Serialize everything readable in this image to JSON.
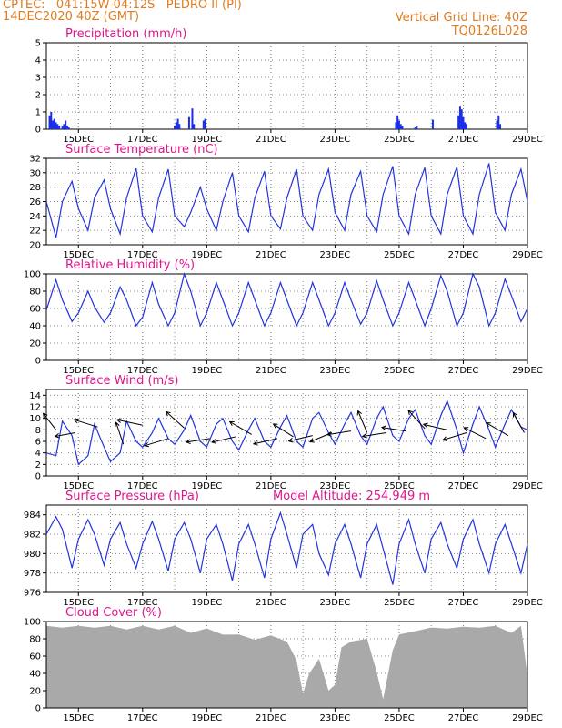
{
  "header": {
    "line1_left": "CPTEC:   041:15W-04:12S   PEDRO II (PI)",
    "line2_left": "14DEC2020 40Z (GMT)",
    "line1_right": "Vertical Grid Line: 40Z",
    "line2_right": "TQ0126L028"
  },
  "colors": {
    "header": "#e07b1f",
    "title": "#e0148c",
    "line": "#2233dd",
    "bar": "#1a2ee8",
    "cloud": "#a9a9a9"
  },
  "chart_data": [
    {
      "id": "precip",
      "type": "bar",
      "title": "Precipitation (mm/h)",
      "x_ticks": [
        "15DEC",
        "17DEC",
        "19DEC",
        "21DEC",
        "23DEC",
        "25DEC",
        "27DEC",
        "29DEC"
      ],
      "x_range_days": [
        14.0,
        29.0
      ],
      "ylim": [
        0,
        5
      ],
      "y_ticks": [
        "0",
        "1",
        "2",
        "3",
        "4",
        "5"
      ],
      "x": [
        14.1,
        14.15,
        14.2,
        14.25,
        14.3,
        14.35,
        14.4,
        14.5,
        14.55,
        14.6,
        14.65,
        14.7,
        18.0,
        18.05,
        18.1,
        18.15,
        18.45,
        18.55,
        18.6,
        18.9,
        18.95,
        24.9,
        24.95,
        25.0,
        25.05,
        25.1,
        25.5,
        25.55,
        26.05,
        26.85,
        26.9,
        26.95,
        27.0,
        27.05,
        27.1,
        28.05,
        28.1,
        28.15
      ],
      "values": [
        0.8,
        1.0,
        0.5,
        0.6,
        0.4,
        0.3,
        0.2,
        0.15,
        0.3,
        0.5,
        0.2,
        0.1,
        0.2,
        0.4,
        0.6,
        0.3,
        0.7,
        1.2,
        0.3,
        0.5,
        0.6,
        0.4,
        0.8,
        0.5,
        0.3,
        0.2,
        0.1,
        0.15,
        0.55,
        0.8,
        1.3,
        1.15,
        0.7,
        0.4,
        0.3,
        0.5,
        0.8,
        0.3
      ]
    },
    {
      "id": "temp",
      "type": "line",
      "title": "Surface Temperature (nC)",
      "x_ticks": [
        "15DEC",
        "17DEC",
        "19DEC",
        "21DEC",
        "23DEC",
        "25DEC",
        "27DEC",
        "29DEC"
      ],
      "x_range_days": [
        14.0,
        29.0
      ],
      "ylim": [
        20,
        32
      ],
      "y_ticks": [
        "20",
        "22",
        "24",
        "26",
        "28",
        "30",
        "32"
      ],
      "x": [
        14.0,
        14.3,
        14.5,
        14.8,
        15.0,
        15.3,
        15.5,
        15.8,
        16.0,
        16.3,
        16.5,
        16.8,
        17.0,
        17.3,
        17.5,
        17.8,
        18.0,
        18.3,
        18.5,
        18.8,
        19.0,
        19.3,
        19.5,
        19.8,
        20.0,
        20.3,
        20.5,
        20.8,
        21.0,
        21.3,
        21.5,
        21.8,
        22.0,
        22.3,
        22.5,
        22.8,
        23.0,
        23.3,
        23.5,
        23.8,
        24.0,
        24.3,
        24.5,
        24.8,
        25.0,
        25.3,
        25.5,
        25.8,
        26.0,
        26.3,
        26.5,
        26.8,
        27.0,
        27.3,
        27.5,
        27.8,
        28.0,
        28.3,
        28.5,
        28.8,
        29.0
      ],
      "values": [
        26.0,
        21.0,
        26.0,
        28.8,
        25.0,
        22.0,
        26.5,
        29.0,
        25.0,
        21.5,
        26.5,
        30.6,
        24.0,
        21.8,
        26.5,
        30.5,
        24.0,
        22.5,
        24.5,
        28.0,
        25.0,
        22.0,
        26.0,
        30.0,
        24.0,
        21.8,
        26.5,
        30.2,
        24.0,
        22.2,
        26.5,
        30.5,
        24.0,
        22.0,
        27.0,
        30.5,
        24.5,
        22.0,
        27.0,
        30.2,
        24.0,
        21.8,
        27.0,
        30.9,
        24.0,
        21.5,
        27.0,
        30.7,
        24.0,
        21.5,
        27.0,
        30.8,
        24.0,
        21.5,
        27.0,
        31.3,
        24.5,
        22.0,
        27.0,
        30.5,
        26.0
      ]
    },
    {
      "id": "rh",
      "type": "line",
      "title": "Relative Humidity (%)",
      "x_ticks": [
        "15DEC",
        "17DEC",
        "19DEC",
        "21DEC",
        "23DEC",
        "25DEC",
        "27DEC",
        "29DEC"
      ],
      "x_range_days": [
        14.0,
        29.0
      ],
      "ylim": [
        0,
        100
      ],
      "y_ticks": [
        "0",
        "20",
        "40",
        "60",
        "80",
        "100"
      ],
      "x": [
        14.0,
        14.3,
        14.5,
        14.8,
        15.0,
        15.3,
        15.5,
        15.8,
        16.0,
        16.3,
        16.5,
        16.8,
        17.0,
        17.3,
        17.5,
        17.8,
        18.0,
        18.3,
        18.5,
        18.8,
        19.0,
        19.3,
        19.5,
        19.8,
        20.0,
        20.3,
        20.5,
        20.8,
        21.0,
        21.3,
        21.5,
        21.8,
        22.0,
        22.3,
        22.5,
        22.8,
        23.0,
        23.3,
        23.5,
        23.8,
        24.0,
        24.3,
        24.5,
        24.8,
        25.0,
        25.3,
        25.5,
        25.8,
        26.0,
        26.3,
        26.5,
        26.8,
        27.0,
        27.3,
        27.5,
        27.8,
        28.0,
        28.3,
        28.5,
        28.8,
        29.0
      ],
      "values": [
        58,
        93,
        70,
        45,
        55,
        80,
        62,
        44,
        55,
        85,
        70,
        40,
        50,
        90,
        65,
        40,
        55,
        100,
        80,
        40,
        55,
        90,
        70,
        40,
        55,
        90,
        70,
        40,
        55,
        90,
        70,
        40,
        55,
        90,
        70,
        40,
        55,
        90,
        70,
        42,
        55,
        92,
        70,
        40,
        55,
        90,
        70,
        40,
        60,
        98,
        80,
        40,
        55,
        100,
        85,
        40,
        55,
        94,
        75,
        45,
        60
      ]
    },
    {
      "id": "wind",
      "type": "line",
      "title": "Surface Wind (m/s)",
      "x_ticks": [
        "15DEC",
        "17DEC",
        "19DEC",
        "21DEC",
        "23DEC",
        "25DEC",
        "27DEC",
        "29DEC"
      ],
      "x_range_days": [
        14.0,
        29.0
      ],
      "ylim": [
        0,
        15
      ],
      "y_ticks": [
        "0",
        "2",
        "4",
        "6",
        "8",
        "10",
        "12",
        "14"
      ],
      "x": [
        14.0,
        14.3,
        14.5,
        14.8,
        15.0,
        15.3,
        15.5,
        15.8,
        16.0,
        16.3,
        16.5,
        16.8,
        17.0,
        17.3,
        17.5,
        17.8,
        18.0,
        18.3,
        18.5,
        18.8,
        19.0,
        19.3,
        19.5,
        19.8,
        20.0,
        20.3,
        20.5,
        20.8,
        21.0,
        21.3,
        21.5,
        21.8,
        22.0,
        22.3,
        22.5,
        22.8,
        23.0,
        23.3,
        23.5,
        23.8,
        24.0,
        24.3,
        24.5,
        24.8,
        25.0,
        25.3,
        25.5,
        25.8,
        26.0,
        26.3,
        26.5,
        26.8,
        27.0,
        27.3,
        27.5,
        27.8,
        28.0,
        28.3,
        28.5,
        28.8,
        29.0
      ],
      "values": [
        4.0,
        3.5,
        9.5,
        7.0,
        2.0,
        3.5,
        9.0,
        5.0,
        2.5,
        4.0,
        9.5,
        6.0,
        5.0,
        7.5,
        10.0,
        6.5,
        5.5,
        8.0,
        10.5,
        6.0,
        5.0,
        9.0,
        10.0,
        6.0,
        4.5,
        8.0,
        10.0,
        6.0,
        5.0,
        8.5,
        10.5,
        6.0,
        5.0,
        10.0,
        11.0,
        7.5,
        5.5,
        9.0,
        11.0,
        7.0,
        5.5,
        10.0,
        12.0,
        7.0,
        6.0,
        10.0,
        11.5,
        7.0,
        5.5,
        10.5,
        13.0,
        8.0,
        4.0,
        9.0,
        12.0,
        8.0,
        5.0,
        9.0,
        11.5,
        8.5,
        8.0
      ],
      "vectors": [
        {
          "x": 14.3,
          "y": 8.0,
          "dx": -14,
          "dy": -18
        },
        {
          "x": 14.9,
          "y": 7.5,
          "dx": -22,
          "dy": 4
        },
        {
          "x": 15.6,
          "y": 8.5,
          "dx": -26,
          "dy": -8
        },
        {
          "x": 16.4,
          "y": 5.5,
          "dx": -8,
          "dy": -24
        },
        {
          "x": 17.0,
          "y": 8.8,
          "dx": -28,
          "dy": -6
        },
        {
          "x": 17.8,
          "y": 6.5,
          "dx": -26,
          "dy": 8
        },
        {
          "x": 18.3,
          "y": 8.3,
          "dx": -20,
          "dy": -18
        },
        {
          "x": 19.1,
          "y": 6.5,
          "dx": -26,
          "dy": 4
        },
        {
          "x": 19.9,
          "y": 6.8,
          "dx": -26,
          "dy": 6
        },
        {
          "x": 20.4,
          "y": 7.2,
          "dx": -24,
          "dy": -14
        },
        {
          "x": 21.2,
          "y": 6.5,
          "dx": -26,
          "dy": 6
        },
        {
          "x": 21.7,
          "y": 6.8,
          "dx": -22,
          "dy": -14
        },
        {
          "x": 22.3,
          "y": 7.0,
          "dx": -26,
          "dy": 6
        },
        {
          "x": 22.9,
          "y": 7.5,
          "dx": -24,
          "dy": 10
        },
        {
          "x": 23.5,
          "y": 7.8,
          "dx": -26,
          "dy": 4
        },
        {
          "x": 24.0,
          "y": 7.5,
          "dx": -10,
          "dy": -24
        },
        {
          "x": 24.6,
          "y": 7.5,
          "dx": -26,
          "dy": 4
        },
        {
          "x": 25.2,
          "y": 7.8,
          "dx": -26,
          "dy": -4
        },
        {
          "x": 25.8,
          "y": 8.2,
          "dx": -18,
          "dy": -20
        },
        {
          "x": 26.5,
          "y": 8.0,
          "dx": -26,
          "dy": -6
        },
        {
          "x": 27.1,
          "y": 7.5,
          "dx": -26,
          "dy": 8
        },
        {
          "x": 27.7,
          "y": 6.5,
          "dx": -24,
          "dy": -12
        },
        {
          "x": 28.4,
          "y": 7.0,
          "dx": -24,
          "dy": -14
        },
        {
          "x": 28.9,
          "y": 7.5,
          "dx": -12,
          "dy": -22
        }
      ]
    },
    {
      "id": "press",
      "type": "line",
      "title": "Surface Pressure (hPa)",
      "annotation": "Model Altitude: 254.949 m",
      "x_ticks": [
        "15DEC",
        "17DEC",
        "19DEC",
        "21DEC",
        "23DEC",
        "25DEC",
        "27DEC",
        "29DEC"
      ],
      "x_range_days": [
        14.0,
        29.0
      ],
      "ylim": [
        976,
        985
      ],
      "y_ticks": [
        "976",
        "978",
        "980",
        "982",
        "984"
      ],
      "x": [
        14.0,
        14.3,
        14.5,
        14.8,
        15.0,
        15.3,
        15.5,
        15.8,
        16.0,
        16.3,
        16.5,
        16.8,
        17.0,
        17.3,
        17.5,
        17.8,
        18.0,
        18.3,
        18.5,
        18.8,
        19.0,
        19.3,
        19.5,
        19.8,
        20.0,
        20.3,
        20.5,
        20.8,
        21.0,
        21.3,
        21.5,
        21.8,
        22.0,
        22.3,
        22.5,
        22.8,
        23.0,
        23.3,
        23.5,
        23.8,
        24.0,
        24.3,
        24.5,
        24.8,
        25.0,
        25.3,
        25.5,
        25.8,
        26.0,
        26.3,
        26.5,
        26.8,
        27.0,
        27.3,
        27.5,
        27.8,
        28.0,
        28.3,
        28.5,
        28.8,
        29.0
      ],
      "values": [
        982.0,
        983.8,
        982.5,
        978.5,
        981.5,
        983.5,
        982.0,
        978.8,
        981.5,
        983.2,
        981.0,
        978.5,
        981.0,
        983.3,
        981.5,
        978.2,
        981.5,
        983.2,
        981.5,
        978.0,
        981.5,
        983.0,
        981.0,
        977.2,
        981.0,
        983.0,
        981.0,
        977.5,
        981.5,
        984.2,
        982.0,
        978.5,
        982.0,
        983.0,
        980.0,
        977.8,
        981.0,
        983.0,
        981.0,
        977.5,
        981.0,
        983.0,
        980.5,
        976.8,
        981.0,
        983.5,
        981.0,
        978.0,
        981.5,
        983.2,
        981.0,
        978.5,
        981.5,
        983.5,
        981.0,
        978.0,
        981.0,
        983.0,
        981.0,
        978.0,
        981.0
      ]
    },
    {
      "id": "cloud",
      "type": "area",
      "title": "Cloud Cover (%)",
      "x_ticks": [
        "15DEC",
        "17DEC",
        "19DEC",
        "21DEC",
        "23DEC",
        "25DEC",
        "27DEC",
        "29DEC"
      ],
      "x_range_days": [
        14.0,
        29.0
      ],
      "ylim": [
        0,
        100
      ],
      "y_ticks": [
        "0",
        "20",
        "40",
        "60",
        "80",
        "100"
      ],
      "x": [
        14.0,
        14.5,
        15.0,
        15.5,
        16.0,
        16.5,
        17.0,
        17.5,
        18.0,
        18.5,
        19.0,
        19.5,
        20.0,
        20.5,
        21.0,
        21.5,
        21.8,
        22.0,
        22.2,
        22.5,
        22.8,
        23.0,
        23.2,
        23.5,
        24.0,
        24.3,
        24.5,
        24.8,
        25.0,
        25.5,
        26.0,
        26.5,
        27.0,
        27.5,
        28.0,
        28.5,
        28.8,
        29.0
      ],
      "values": [
        95,
        96,
        95,
        96,
        95,
        94,
        95,
        94,
        95,
        90,
        92,
        88,
        85,
        82,
        84,
        80,
        55,
        20,
        40,
        60,
        20,
        30,
        70,
        80,
        80,
        45,
        10,
        70,
        85,
        92,
        93,
        95,
        94,
        96,
        95,
        90,
        95,
        40
      ]
    }
  ]
}
